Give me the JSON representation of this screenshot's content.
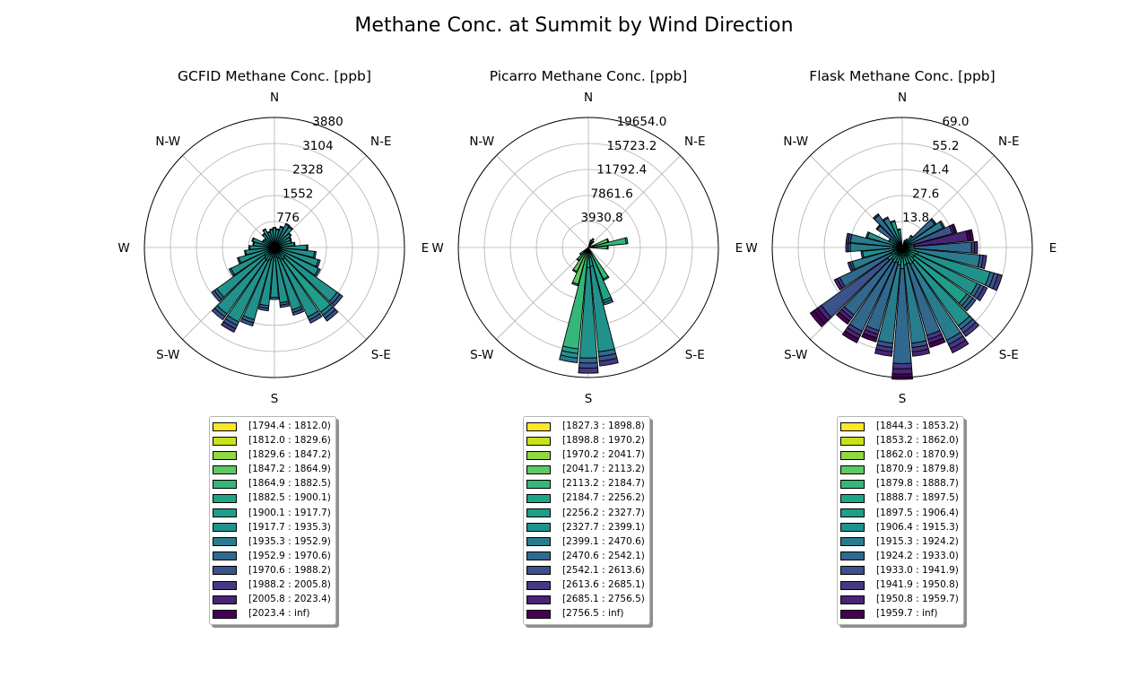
{
  "figure_title": "Methane Conc. at Summit by Wind Direction",
  "chart_data": [
    {
      "type": "windrose",
      "title": "GCFID Methane Conc. [ppb]",
      "directions": [
        "N",
        "N-E",
        "E",
        "S-E",
        "S",
        "S-W",
        "W",
        "N-W"
      ],
      "radial_ticks": [
        "776",
        "1552",
        "2328",
        "3104",
        "3880"
      ],
      "rmax": 3880,
      "sectors": 36,
      "sector_totals": [
        600,
        560,
        660,
        800,
        780,
        620,
        560,
        540,
        620,
        1000,
        1250,
        1420,
        1520,
        2500,
        2700,
        2500,
        2100,
        1800,
        1550,
        1900,
        2430,
        2800,
        2650,
        2300,
        1500,
        1150,
        900,
        760,
        650,
        700,
        400,
        380,
        520,
        620,
        500,
        560
      ],
      "dominant_bin": [
        7,
        7,
        8,
        8,
        7,
        7,
        7,
        7,
        7,
        7,
        7,
        7,
        7,
        7,
        6,
        7,
        7,
        7,
        7,
        7,
        7,
        7,
        7,
        7,
        7,
        7,
        7,
        7,
        7,
        7,
        7,
        7,
        7,
        7,
        7,
        7
      ],
      "legend": [
        "[1794.4 : 1812.0)",
        "[1812.0 : 1829.6)",
        "[1829.6 : 1847.2)",
        "[1847.2 : 1864.9)",
        "[1864.9 : 1882.5)",
        "[1882.5 : 1900.1)",
        "[1900.1 : 1917.7)",
        "[1917.7 : 1935.3)",
        "[1935.3 : 1952.9)",
        "[1952.9 : 1970.6)",
        "[1970.6 : 1988.2)",
        "[1988.2 : 2005.8)",
        "[2005.8 : 2023.4)",
        "[2023.4 : inf)"
      ]
    },
    {
      "type": "windrose",
      "title": "Picarro Methane Conc. [ppb]",
      "directions": [
        "N",
        "N-E",
        "E",
        "S-E",
        "S",
        "S-W",
        "W",
        "N-W"
      ],
      "radial_ticks": [
        "3930.8",
        "7861.6",
        "11792.4",
        "15723.2",
        "19654.0"
      ],
      "rmax": 19654.0,
      "sectors": 36,
      "sector_totals": [
        0,
        0,
        1200,
        1500,
        1200,
        0,
        0,
        3200,
        6000,
        3000,
        0,
        0,
        0,
        0,
        0,
        5500,
        9000,
        18000,
        19000,
        17500,
        6000,
        4200,
        2500,
        1600,
        0,
        0,
        0,
        0,
        0,
        0,
        0,
        0,
        0,
        0,
        0,
        0
      ],
      "dominant_bin": [
        3,
        3,
        3,
        3,
        3,
        3,
        3,
        3,
        4,
        4,
        3,
        3,
        3,
        3,
        3,
        4,
        5,
        7,
        7,
        4,
        3,
        3,
        4,
        3,
        3,
        3,
        3,
        3,
        3,
        3,
        3,
        3,
        3,
        3,
        3,
        3
      ],
      "legend": [
        "[1827.3 : 1898.8)",
        "[1898.8 : 1970.2)",
        "[1970.2 : 2041.7)",
        "[2041.7 : 2113.2)",
        "[2113.2 : 2184.7)",
        "[2184.7 : 2256.2)",
        "[2256.2 : 2327.7)",
        "[2327.7 : 2399.1)",
        "[2399.1 : 2470.6)",
        "[2470.6 : 2542.1)",
        "[2542.1 : 2613.6)",
        "[2613.6 : 2685.1)",
        "[2685.1 : 2756.5)",
        "[2756.5 : inf)"
      ]
    },
    {
      "type": "windrose",
      "title": "Flask Methane Conc. [ppb]",
      "directions": [
        "N",
        "N-E",
        "E",
        "S-E",
        "S",
        "S-W",
        "W",
        "N-W"
      ],
      "radial_ticks": [
        "13.8",
        "27.6",
        "41.4",
        "55.2",
        "69.0"
      ],
      "rmax": 69.0,
      "sectors": 36,
      "sector_totals": [
        0,
        0,
        4,
        5,
        8,
        22,
        25,
        30,
        38,
        40,
        45,
        55,
        50,
        48,
        58,
        62,
        55,
        58,
        70,
        58,
        52,
        56,
        50,
        60,
        40,
        30,
        22,
        30,
        30,
        20,
        8,
        17,
        22,
        18,
        15,
        10
      ],
      "dominant_bin": [
        7,
        7,
        7,
        7,
        7,
        9,
        8,
        10,
        12,
        9,
        8,
        7,
        7,
        6,
        7,
        8,
        9,
        8,
        9,
        8,
        9,
        9,
        9,
        10,
        9,
        8,
        7,
        8,
        8,
        7,
        7,
        9,
        9,
        8,
        6,
        7
      ],
      "legend": [
        "[1844.3 : 1853.2)",
        "[1853.2 : 1862.0)",
        "[1862.0 : 1870.9)",
        "[1870.9 : 1879.8)",
        "[1879.8 : 1888.7)",
        "[1888.7 : 1897.5)",
        "[1897.5 : 1906.4)",
        "[1906.4 : 1915.3)",
        "[1915.3 : 1924.2)",
        "[1924.2 : 1933.0)",
        "[1933.0 : 1941.9)",
        "[1941.9 : 1950.8)",
        "[1950.8 : 1959.7)",
        "[1959.7 : inf)"
      ]
    }
  ],
  "palette": [
    "#fde725",
    "#c8e020",
    "#90d743",
    "#5ec962",
    "#35b779",
    "#20a486",
    "#1f9e89",
    "#21918c",
    "#287c8e",
    "#31688e",
    "#3b528b",
    "#443983",
    "#482475",
    "#440154"
  ]
}
